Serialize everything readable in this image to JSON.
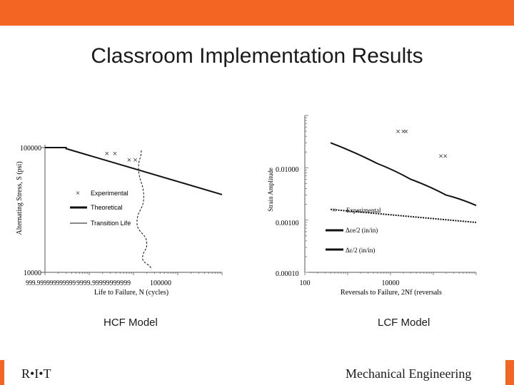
{
  "slide": {
    "title": "Classroom Implementation Results",
    "logo": "R•I•T",
    "department": "Mechanical Engineering",
    "accent_color": "#f26522"
  },
  "chart_data": [
    {
      "type": "scatter",
      "caption": "HCF Model",
      "xlabel": "Life to Failure, N (cycles)",
      "ylabel": "Alternating Stress, S (psi)",
      "x_tick_labels": [
        "999.999999999999",
        "9999.99999999999",
        "100000"
      ],
      "y_tick_labels": [
        "10000",
        "100000"
      ],
      "xscale": "log",
      "yscale": "log",
      "xlim": [
        1000,
        10000000
      ],
      "ylim": [
        10000,
        100000
      ],
      "legend_placement": "lower-left",
      "series": [
        {
          "name": "Experimental",
          "marker": "x",
          "color": "#404040",
          "x": [
            25000,
            38000,
            80000,
            110000
          ],
          "y": [
            90000,
            90000,
            80000,
            80000
          ]
        },
        {
          "name": "Theoretical",
          "style": "thick-line",
          "color": "#111111",
          "x": [
            1000,
            3000,
            3000,
            10000000
          ],
          "y": [
            100000,
            100000,
            98000,
            42000
          ]
        },
        {
          "name": "Transition Life",
          "style": "thin-line",
          "color": "#111111",
          "x": [
            150000,
            130000,
            170000,
            120000,
            200000,
            160000,
            250000
          ],
          "y": [
            95000,
            70000,
            40000,
            25000,
            17000,
            13000,
            10500
          ]
        }
      ]
    },
    {
      "type": "line",
      "caption": "LCF Model",
      "xlabel": "Reversals to Failure, 2Nf (reversals",
      "ylabel": "Strain Amplitude",
      "x_tick_labels": [
        "100",
        "10000"
      ],
      "y_tick_labels": [
        "0.00010",
        "0.00100",
        "0.01000"
      ],
      "xscale": "log",
      "yscale": "log",
      "xlim": [
        100,
        1000000
      ],
      "ylim": [
        0.0001,
        0.1
      ],
      "legend_placement": "lower-right",
      "series": [
        {
          "name": "Experimental",
          "marker": "x",
          "color": "#404040",
          "x": [
            15000,
            20000,
            23000,
            150000,
            190000
          ],
          "y": [
            0.05,
            0.05,
            0.05,
            0.017,
            0.017
          ]
        },
        {
          "name": "Δεe/2 (in/in)",
          "style": "dotted",
          "color": "#111111",
          "x": [
            400,
            1000000
          ],
          "y": [
            0.0016,
            0.0009
          ]
        },
        {
          "name": "Δε/2 (in/in)",
          "style": "thick-line",
          "color": "#111111",
          "x": [
            400,
            5000,
            30000,
            200000,
            1000000
          ],
          "y": [
            0.03,
            0.012,
            0.006,
            0.003,
            0.0019
          ]
        }
      ]
    }
  ]
}
